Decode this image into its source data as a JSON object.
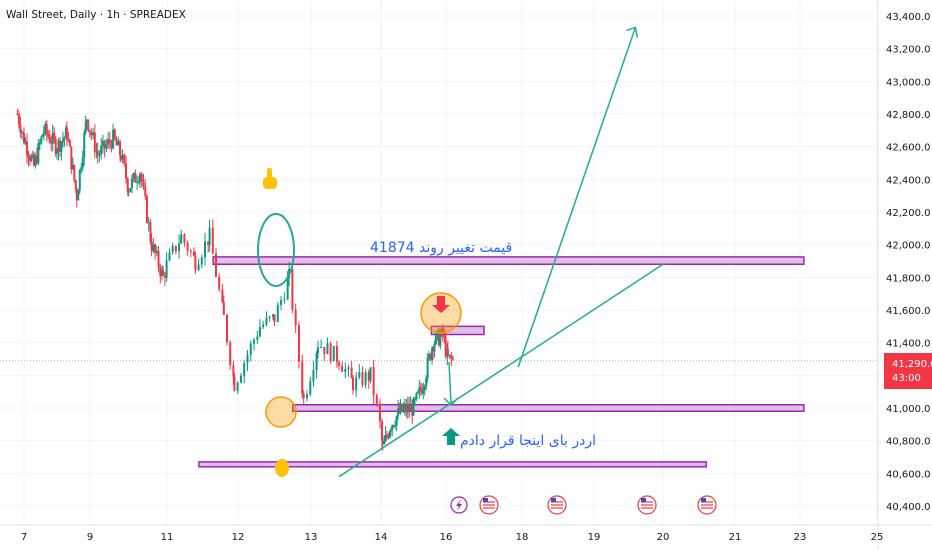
{
  "header": {
    "title": "Wall Street, Daily · 1h · SPREADEX"
  },
  "price_tag": {
    "price": "41,290.0",
    "countdown": "43:00",
    "color": "#f23645"
  },
  "annotations": {
    "top_text": "قیمت تغییر روند 41874",
    "bottom_text": "اردر بای  اینجا قرار دادم"
  },
  "colors": {
    "up": "#089981",
    "down": "#f23645",
    "zone_stroke": "#9c27b0",
    "zone_fill": "#e1bee7",
    "trend": "#22ab94",
    "text_blue": "#2962ff",
    "orange": "#ff9800",
    "hand": "#ffc107"
  },
  "icons": [
    "pointing-hand-icon",
    "arrow-down-icon",
    "arrow-up-icon",
    "lightning-icon",
    "us-flag-icon"
  ],
  "chart_data": {
    "type": "candlestick",
    "ylim": [
      40350,
      43450
    ],
    "y_ticks": [
      40400,
      40600,
      40800,
      41000,
      41200,
      41400,
      41600,
      41800,
      42000,
      42200,
      42400,
      42600,
      42800,
      43000,
      43200,
      43400
    ],
    "y_tick_labels": [
      "40,400.0",
      "40,600.0",
      "40,800.0",
      "41,000.0",
      "41,200.0",
      "41,400.0",
      "41,600.0",
      "41,800.0",
      "42,000.0",
      "42,200.0",
      "42,400.0",
      "42,600.0",
      "42,800.0",
      "43,000.0",
      "43,200.0",
      "43,400.0"
    ],
    "x_ticks": [
      7,
      9,
      11,
      12,
      13,
      14,
      16,
      18,
      19,
      20,
      21,
      23,
      25
    ],
    "x_tick_labels": [
      "7",
      "9",
      "11",
      "12",
      "13",
      "14",
      "16",
      "18",
      "19",
      "20",
      "21",
      "23",
      "25"
    ],
    "last_price": 41290,
    "anchors": [
      {
        "x": 6.8,
        "price": 42800
      },
      {
        "x": 7.0,
        "price": 42650
      },
      {
        "x": 7.3,
        "price": 42480
      },
      {
        "x": 7.6,
        "price": 42700
      },
      {
        "x": 8.0,
        "price": 42600
      },
      {
        "x": 8.3,
        "price": 42680
      },
      {
        "x": 8.6,
        "price": 42300
      },
      {
        "x": 8.9,
        "price": 42780
      },
      {
        "x": 9.2,
        "price": 42550
      },
      {
        "x": 9.6,
        "price": 42650
      },
      {
        "x": 9.8,
        "price": 42550
      },
      {
        "x": 10.0,
        "price": 42350
      },
      {
        "x": 10.3,
        "price": 42450
      },
      {
        "x": 10.6,
        "price": 42000
      },
      {
        "x": 10.9,
        "price": 41800
      },
      {
        "x": 11.2,
        "price": 42050
      },
      {
        "x": 11.4,
        "price": 41900
      },
      {
        "x": 11.6,
        "price": 42050
      },
      {
        "x": 11.8,
        "price": 41550
      },
      {
        "x": 11.95,
        "price": 41150
      },
      {
        "x": 12.3,
        "price": 41500
      },
      {
        "x": 12.5,
        "price": 41550
      },
      {
        "x": 12.7,
        "price": 41800
      },
      {
        "x": 12.9,
        "price": 41050
      },
      {
        "x": 13.1,
        "price": 41400
      },
      {
        "x": 13.4,
        "price": 41300
      },
      {
        "x": 13.6,
        "price": 41150
      },
      {
        "x": 13.85,
        "price": 41200
      },
      {
        "x": 14.05,
        "price": 40750
      },
      {
        "x": 14.3,
        "price": 40900
      },
      {
        "x": 14.6,
        "price": 40980
      },
      {
        "x": 15.0,
        "price": 41000
      },
      {
        "x": 15.3,
        "price": 41150
      },
      {
        "x": 15.6,
        "price": 41400
      },
      {
        "x": 15.9,
        "price": 41450
      },
      {
        "x": 16.05,
        "price": 41300
      },
      {
        "x": 16.2,
        "price": 41290
      }
    ],
    "zones": [
      {
        "x0": 11.65,
        "x1": 23.1,
        "top": 41925,
        "bottom": 41880
      },
      {
        "x0": 15.55,
        "x1": 17.0,
        "top": 41500,
        "bottom": 41450
      },
      {
        "x0": 12.75,
        "x1": 23.1,
        "top": 41020,
        "bottom": 40980
      },
      {
        "x0": 11.45,
        "x1": 20.6,
        "top": 40670,
        "bottom": 40640
      }
    ],
    "trendlines": [
      {
        "x0": 13.4,
        "y0": 40580,
        "x1": 20.0,
        "y1": 41880
      },
      {
        "x0": 17.9,
        "y0": 41250,
        "x1": 19.6,
        "y1": 43330
      }
    ]
  }
}
